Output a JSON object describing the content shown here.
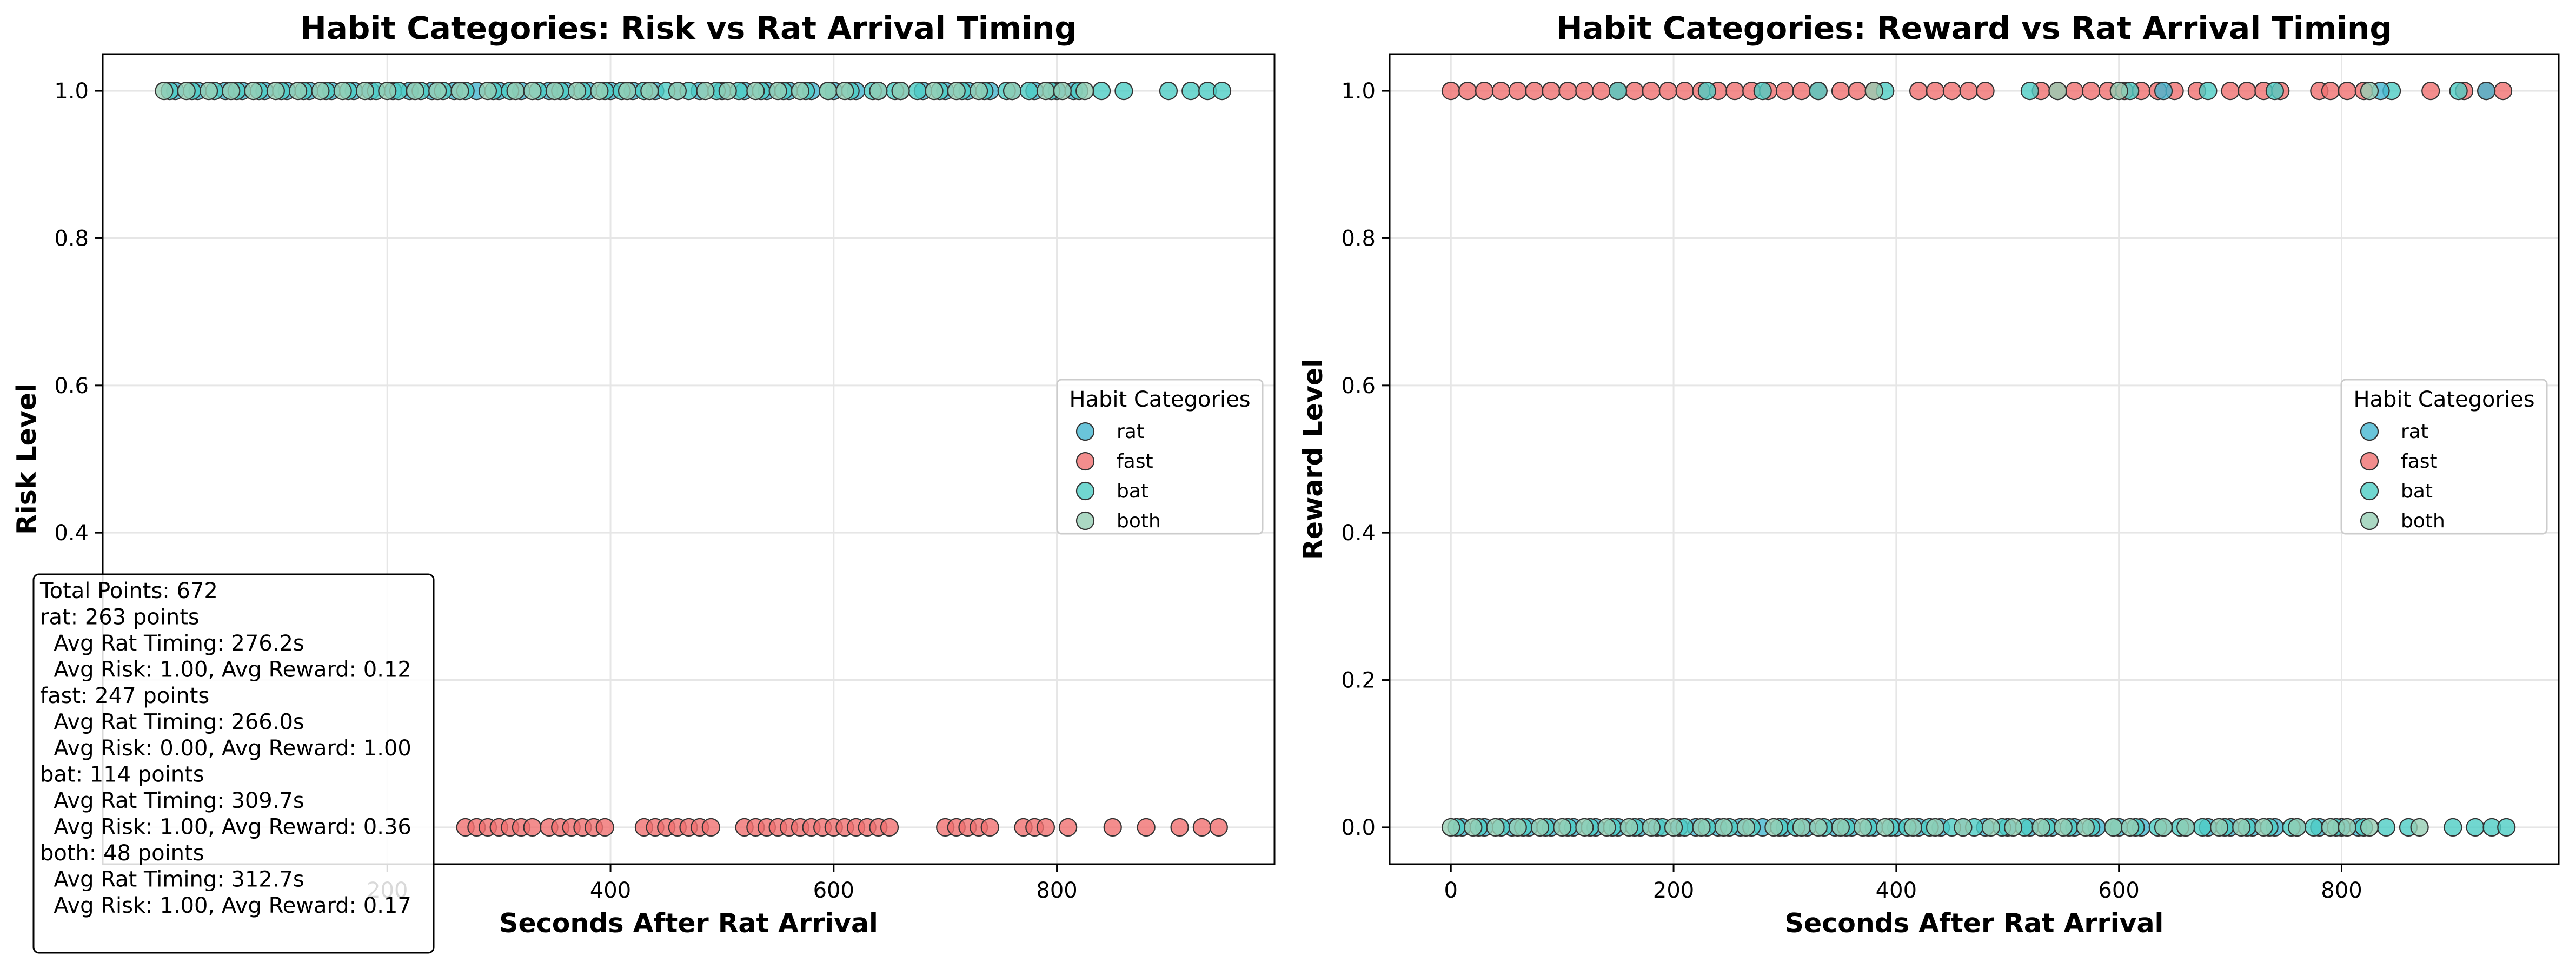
{
  "chart_data": [
    {
      "type": "scatter",
      "title": "Habit Categories: Risk vs Rat Arrival Timing",
      "xlabel": "Seconds After Rat Arrival",
      "ylabel": "Risk Level",
      "xlim": [
        -55,
        995
      ],
      "ylim": [
        -0.05,
        1.05
      ],
      "xticks": [
        "200",
        "400",
        "600",
        "800"
      ],
      "xtick_values": [
        200,
        400,
        600,
        800
      ],
      "yticks": [
        "0.4",
        "0.6",
        "0.8",
        "1.0"
      ],
      "ytick_values": [
        0.4,
        0.6,
        0.8,
        1.0
      ],
      "grid": true,
      "legend": {
        "title": "Habit Categories",
        "placement": "center-right"
      },
      "series": [
        {
          "name": "rat",
          "color": "#45B7D1",
          "y": 1,
          "x": [
            10,
            30,
            55,
            70,
            90,
            110,
            130,
            150,
            170,
            185,
            205,
            220,
            240,
            260,
            280,
            300,
            320,
            345,
            360,
            380,
            400,
            420,
            440,
            460,
            480,
            500,
            520,
            540,
            560,
            580,
            600,
            620,
            640,
            660,
            680,
            700,
            720,
            740,
            760,
            780,
            800,
            815
          ]
        },
        {
          "name": "fast",
          "color": "#F07070",
          "y": 0,
          "x": [
            270,
            280,
            290,
            300,
            310,
            320,
            330,
            345,
            355,
            365,
            375,
            385,
            395,
            430,
            440,
            450,
            460,
            470,
            480,
            490,
            520,
            530,
            540,
            550,
            560,
            570,
            580,
            590,
            600,
            610,
            620,
            630,
            640,
            650,
            700,
            710,
            720,
            730,
            740,
            770,
            780,
            790,
            810,
            850,
            880,
            910,
            930,
            945
          ]
        },
        {
          "name": "bat",
          "color": "#4ECDC4",
          "y": 1,
          "x": [
            5,
            25,
            45,
            65,
            85,
            105,
            125,
            145,
            165,
            190,
            210,
            230,
            250,
            270,
            295,
            310,
            335,
            355,
            375,
            395,
            410,
            430,
            450,
            470,
            495,
            515,
            535,
            555,
            575,
            595,
            615,
            635,
            655,
            675,
            695,
            715,
            735,
            755,
            775,
            795,
            820,
            840,
            860,
            900,
            920,
            935,
            948
          ]
        },
        {
          "name": "both",
          "color": "#96CEB4",
          "y": 1,
          "x": [
            0,
            20,
            40,
            60,
            80,
            100,
            120,
            140,
            160,
            180,
            200,
            225,
            245,
            265,
            290,
            315,
            330,
            350,
            370,
            390,
            415,
            435,
            460,
            485,
            505,
            530,
            550,
            570,
            595,
            610,
            640,
            660,
            690,
            710,
            730,
            760,
            790,
            805,
            825
          ]
        }
      ],
      "annotation": [
        "Total Points: 672",
        "rat: 263 points",
        "  Avg Rat Timing: 276.2s",
        "  Avg Risk: 1.00, Avg Reward: 0.12",
        "fast: 247 points",
        "  Avg Rat Timing: 266.0s",
        "  Avg Risk: 0.00, Avg Reward: 1.00",
        "bat: 114 points",
        "  Avg Rat Timing: 309.7s",
        "  Avg Risk: 1.00, Avg Reward: 0.36",
        "both: 48 points",
        "  Avg Rat Timing: 312.7s",
        "  Avg Risk: 1.00, Avg Reward: 0.17"
      ]
    },
    {
      "type": "scatter",
      "title": "Habit Categories: Reward vs Rat Arrival Timing",
      "xlabel": "Seconds After Rat Arrival",
      "ylabel": "Reward Level",
      "xlim": [
        -55,
        995
      ],
      "ylim": [
        -0.05,
        1.05
      ],
      "xticks": [
        "0",
        "200",
        "400",
        "600",
        "800"
      ],
      "xtick_values": [
        0,
        200,
        400,
        600,
        800
      ],
      "yticks": [
        "0.0",
        "0.2",
        "0.4",
        "0.6",
        "0.8",
        "1.0"
      ],
      "ytick_values": [
        0.0,
        0.2,
        0.4,
        0.6,
        0.8,
        1.0
      ],
      "grid": true,
      "legend": {
        "title": "Habit Categories",
        "placement": "center-right"
      },
      "series": [
        {
          "name": "rat",
          "color": "#45B7D1",
          "y": 0,
          "x": [
            10,
            30,
            55,
            70,
            90,
            110,
            130,
            150,
            170,
            185,
            205,
            220,
            240,
            260,
            280,
            300,
            320,
            345,
            360,
            380,
            400,
            420,
            440,
            460,
            480,
            500,
            520,
            540,
            560,
            580,
            600,
            620,
            640,
            660,
            680,
            700,
            720,
            740,
            760,
            780,
            800,
            815
          ]
        },
        {
          "name": "fast",
          "color": "#F07070",
          "y": 1,
          "x": [
            0,
            15,
            30,
            45,
            60,
            75,
            90,
            105,
            120,
            135,
            150,
            165,
            180,
            195,
            210,
            225,
            240,
            255,
            270,
            285,
            300,
            315,
            330,
            350,
            365,
            380,
            420,
            435,
            450,
            465,
            480,
            530,
            545,
            560,
            575,
            590,
            605,
            620,
            635,
            650,
            670,
            700,
            715,
            730,
            745,
            780,
            790,
            805,
            820,
            880,
            910,
            930,
            945
          ]
        },
        {
          "name": "bat",
          "color": "#4ECDC4",
          "y": 0,
          "x": [
            5,
            25,
            45,
            65,
            85,
            105,
            125,
            145,
            165,
            190,
            210,
            230,
            250,
            270,
            295,
            310,
            335,
            355,
            375,
            395,
            410,
            430,
            450,
            470,
            495,
            515,
            535,
            555,
            575,
            595,
            615,
            635,
            655,
            675,
            695,
            715,
            735,
            755,
            775,
            795,
            820,
            840,
            860,
            900,
            920,
            935,
            948
          ]
        },
        {
          "name": "both",
          "color": "#96CEB4",
          "y": 0,
          "x": [
            0,
            20,
            40,
            60,
            80,
            100,
            120,
            140,
            160,
            180,
            200,
            225,
            245,
            265,
            290,
            315,
            330,
            350,
            370,
            390,
            415,
            435,
            460,
            485,
            505,
            530,
            550,
            570,
            595,
            610,
            640,
            660,
            690,
            710,
            730,
            760,
            790,
            805,
            825,
            870
          ]
        }
      ],
      "extra_points": [
        {
          "series": "bat",
          "y": 1,
          "x": [
            150,
            230,
            280,
            330,
            390,
            520,
            610,
            680,
            740,
            845,
            905
          ]
        },
        {
          "series": "rat",
          "y": 1,
          "x": [
            640,
            835,
            930
          ]
        },
        {
          "series": "both",
          "y": 1,
          "x": [
            380,
            545,
            600,
            825
          ]
        }
      ]
    }
  ]
}
